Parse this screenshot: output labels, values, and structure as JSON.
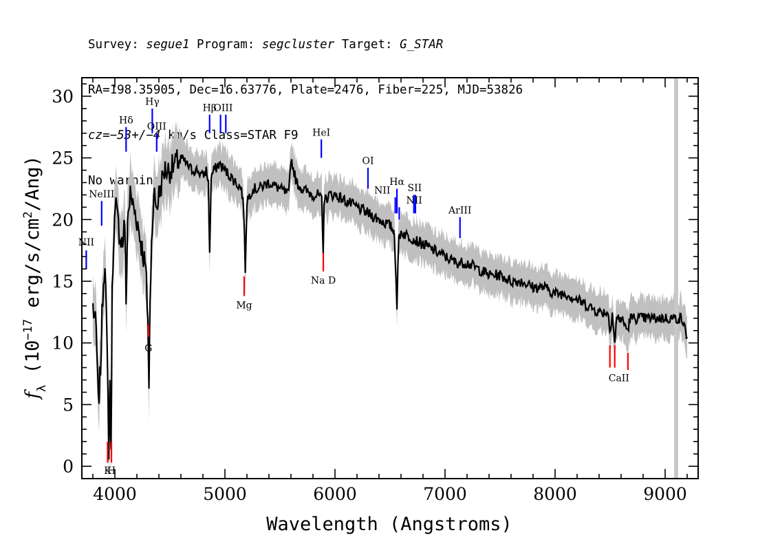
{
  "header": {
    "line1_prefix": "Survey: ",
    "survey": "segue1",
    "program_label": " Program: ",
    "program": "segcluster",
    "target_label": " Target: ",
    "target": "G_STAR",
    "line2": "RA=198.35905, Dec=16.63776, Plate=2476, Fiber=225, MJD=53826",
    "cz_label": "cz=",
    "cz_value": "−53+/−4",
    "cz_units": " km/s Class=STAR F9",
    "line4": "No warnings."
  },
  "chart_data": {
    "type": "line",
    "xlabel": "Wavelength (Angstroms)",
    "ylabel": "f_λ (10^-17 erg/s/cm^2/Ang)",
    "xlim": [
      3700,
      9300
    ],
    "ylim": [
      -1,
      31.5
    ],
    "xticks": [
      4000,
      5000,
      6000,
      7000,
      8000,
      9000
    ],
    "yticks": [
      0,
      5,
      10,
      15,
      20,
      25,
      30
    ],
    "colors": {
      "flux": "#000000",
      "error_band": "#c0c0c0",
      "emission": "#0000ff",
      "absorption": "#ff0000",
      "masked": "#c8c8c8"
    },
    "masked_region_x": 9100,
    "series": [
      {
        "x": [
          3800,
          3830,
          3850,
          3870,
          3890,
          3910,
          3930,
          3945,
          3955,
          3965,
          3975,
          3990,
          4010,
          4040,
          4070,
          4090,
          4102,
          4115,
          4140,
          4170,
          4200,
          4240,
          4280,
          4300,
          4310,
          4320,
          4340,
          4360,
          4380,
          4400,
          4450,
          4500,
          4550,
          4600,
          4650,
          4700,
          4750,
          4800,
          4830,
          4850,
          4861,
          4875,
          4900,
          4950,
          5000,
          5050,
          5100,
          5150,
          5170,
          5185,
          5200,
          5250,
          5300,
          5400,
          5500,
          5580,
          5600,
          5650,
          5700,
          5800,
          5850,
          5880,
          5893,
          5900,
          5950,
          6000,
          6100,
          6200,
          6300,
          6400,
          6500,
          6540,
          6563,
          6580,
          6600,
          6700,
          6800,
          6900,
          7000,
          7100,
          7200,
          7300,
          7400,
          7500,
          7600,
          7700,
          7800,
          7900,
          8000,
          8100,
          8200,
          8300,
          8400,
          8480,
          8498,
          8520,
          8542,
          8560,
          8600,
          8662,
          8680,
          8750,
          8850,
          8950,
          9050,
          9150,
          9200
        ],
        "values": [
          13,
          11,
          5,
          8,
          14,
          17,
          9,
          1.5,
          7,
          0.5,
          14,
          19,
          21,
          19,
          18,
          20,
          13,
          20,
          22,
          21,
          20,
          18,
          16,
          12,
          6,
          14,
          20,
          22,
          21,
          22,
          24,
          24,
          24.5,
          25,
          24.5,
          24,
          24,
          23.5,
          24,
          23,
          17,
          23.5,
          24,
          24.5,
          24,
          23.5,
          23,
          22.5,
          21,
          16,
          21.5,
          22.5,
          22.5,
          23,
          22.5,
          22,
          25,
          23,
          22.5,
          22,
          22,
          21.5,
          17,
          21.5,
          22,
          22,
          21.5,
          21,
          20.5,
          20,
          19.5,
          19,
          13,
          18.5,
          19,
          18.5,
          18,
          17.5,
          17,
          16.5,
          16.5,
          16,
          15.5,
          15.5,
          15,
          15,
          14.5,
          14.5,
          14,
          14,
          13.5,
          13,
          12.5,
          12.5,
          11,
          12.5,
          10,
          12,
          12,
          11,
          12,
          12,
          12,
          12,
          12,
          12,
          10.5
        ]
      }
    ],
    "emission_lines": [
      {
        "label": "NII",
        "x": 3740,
        "y": [
          16,
          17.5
        ]
      },
      {
        "label": "NeIII",
        "x": 3880,
        "y": [
          19.5,
          21.5
        ]
      },
      {
        "label": "Hδ",
        "x": 4102,
        "y": [
          25.5,
          27.5
        ]
      },
      {
        "label": "Hγ",
        "x": 4340,
        "y": [
          27,
          29
        ]
      },
      {
        "label": "OIII",
        "x": 4380,
        "y": [
          25.5,
          27
        ]
      },
      {
        "label": "Hβ",
        "x": 4861,
        "y": [
          27,
          28.5
        ]
      },
      {
        "label": "OIII",
        "x": 4960,
        "y": [
          27,
          28.5
        ]
      },
      {
        "label": "OIII",
        "x": 5008,
        "y": [
          27,
          28.5
        ]
      },
      {
        "label": "HeI",
        "x": 5876,
        "y": [
          25,
          26.5
        ]
      },
      {
        "label": "OI",
        "x": 6300,
        "y": [
          22.5,
          24.2
        ]
      },
      {
        "label": "NII",
        "x": 6548,
        "y": [
          20.5,
          21.8
        ]
      },
      {
        "label": "Hα",
        "x": 6563,
        "y": [
          20.5,
          22.5
        ]
      },
      {
        "label": "NII",
        "x": 6584,
        "y": [
          20,
          21
        ]
      },
      {
        "label": "SII",
        "x": 6717,
        "y": [
          20.5,
          22
        ]
      },
      {
        "label": "SII",
        "x": 6731,
        "y": [
          20.5,
          22
        ]
      },
      {
        "label": "ArIII",
        "x": 7136,
        "y": [
          18.5,
          20.2
        ]
      }
    ],
    "absorption_lines": [
      {
        "label": "K",
        "x": 3934,
        "y": [
          0.3,
          2
        ]
      },
      {
        "label": "H",
        "x": 3969,
        "y": [
          0.3,
          2
        ]
      },
      {
        "label": "G",
        "x": 4305,
        "y": [
          10.5,
          11.5
        ]
      },
      {
        "label": "Mg",
        "x": 5175,
        "y": [
          13.8,
          15.4
        ]
      },
      {
        "label": "Na D",
        "x": 5894,
        "y": [
          15.8,
          17.3
        ]
      },
      {
        "label": "CaII",
        "x": 8498,
        "y": [
          8,
          9.8
        ]
      },
      {
        "label": "CaII",
        "x": 8542,
        "y": [
          8,
          9.8
        ]
      },
      {
        "label": "CaII",
        "x": 8662,
        "y": [
          7.8,
          9.2
        ]
      }
    ],
    "line_label_texts": [
      {
        "text": "NII",
        "x": 3740,
        "y": 17.9,
        "kind": "emission"
      },
      {
        "text": "NeIII",
        "x": 3880,
        "y": 21.8,
        "kind": "emission"
      },
      {
        "text": "Hδ",
        "x": 4102,
        "y": 27.8,
        "kind": "emission"
      },
      {
        "text": "Hγ",
        "x": 4340,
        "y": 29.3,
        "kind": "emission"
      },
      {
        "text": "OIII",
        "x": 4380,
        "y": 27.3,
        "kind": "emission"
      },
      {
        "text": "Hβ",
        "x": 4861,
        "y": 28.8,
        "kind": "emission"
      },
      {
        "text": "OIII",
        "x": 4984,
        "y": 28.8,
        "kind": "emission"
      },
      {
        "text": "HeI",
        "x": 5876,
        "y": 26.8,
        "kind": "emission"
      },
      {
        "text": "OI",
        "x": 6300,
        "y": 24.5,
        "kind": "emission"
      },
      {
        "text": "NII",
        "x": 6430,
        "y": 22.1,
        "kind": "emission"
      },
      {
        "text": "Hα",
        "x": 6563,
        "y": 22.8,
        "kind": "emission"
      },
      {
        "text": "NII",
        "x": 6720,
        "y": 21.3,
        "kind": "emission"
      },
      {
        "text": "SII",
        "x": 6724,
        "y": 22.3,
        "kind": "emission"
      },
      {
        "text": "ArIII",
        "x": 7136,
        "y": 20.5,
        "kind": "emission"
      },
      {
        "text": "K",
        "x": 3934,
        "y": -0.6,
        "kind": "absorption"
      },
      {
        "text": "H",
        "x": 3969,
        "y": -0.6,
        "kind": "absorption"
      },
      {
        "text": "G",
        "x": 4305,
        "y": 9.3,
        "kind": "absorption"
      },
      {
        "text": "Mg",
        "x": 5175,
        "y": 12.8,
        "kind": "absorption"
      },
      {
        "text": "Na  D",
        "x": 5894,
        "y": 14.8,
        "kind": "absorption"
      },
      {
        "text": "CaII",
        "x": 8580,
        "y": 6.9,
        "kind": "absorption"
      }
    ]
  }
}
